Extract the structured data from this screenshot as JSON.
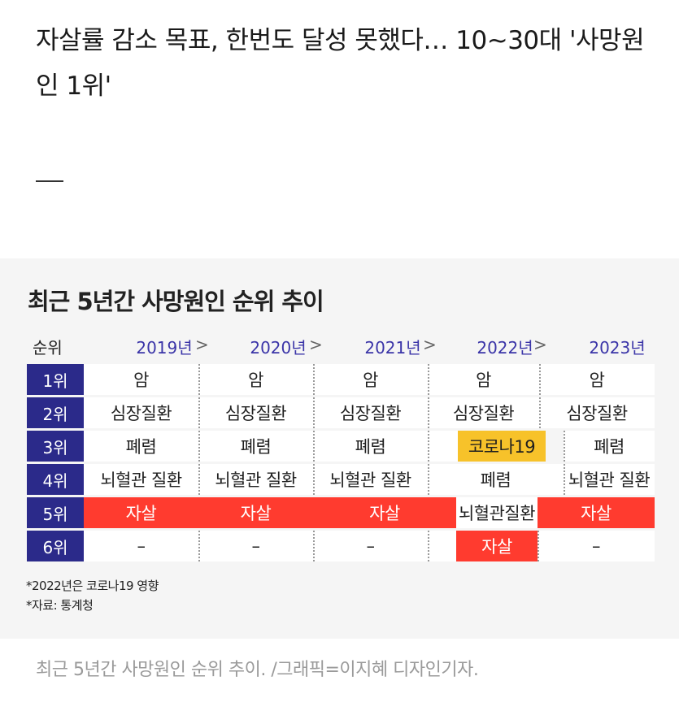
{
  "article": {
    "headline": "자살률 감소 목표, 한번도 달성 못했다… 10~30대 '사망원인 1위'",
    "dash": "—"
  },
  "graphic": {
    "title": "최근 5년간 사망원인 순위 추이",
    "rank_header": "순위",
    "arrow": ">",
    "years": [
      "2019년",
      "2020년",
      "2021년",
      "2022년",
      "2023년"
    ],
    "ranks": [
      "1위",
      "2위",
      "3위",
      "4위",
      "5위",
      "6위"
    ],
    "table": [
      [
        "암",
        "암",
        "암",
        "암",
        "암"
      ],
      [
        "심장질환",
        "심장질환",
        "심장질환",
        "심장질환",
        "심장질환"
      ],
      [
        "폐렴",
        "폐렴",
        "폐렴",
        "코로나19",
        "폐렴"
      ],
      [
        "뇌혈관 질환",
        "뇌혈관 질환",
        "뇌혈관 질환",
        "폐렴",
        "뇌혈관 질환"
      ],
      [
        "자살",
        "자살",
        "자살",
        "뇌혈관질환",
        "자살"
      ],
      [
        "–",
        "–",
        "–",
        "자살",
        "–"
      ]
    ],
    "highlights": {
      "suicide_color": "#ff3b2f",
      "covid_color": "#f7c22a",
      "rank_bg_color": "#2b2a8a",
      "year_text_color": "#3b35a8"
    },
    "note1": "*2022년은 코로나19 영향",
    "note2": "*자료: 통계청"
  },
  "caption": "최근 5년간 사망원인 순위 추이. /그래픽=이지혜 디자인기자."
}
